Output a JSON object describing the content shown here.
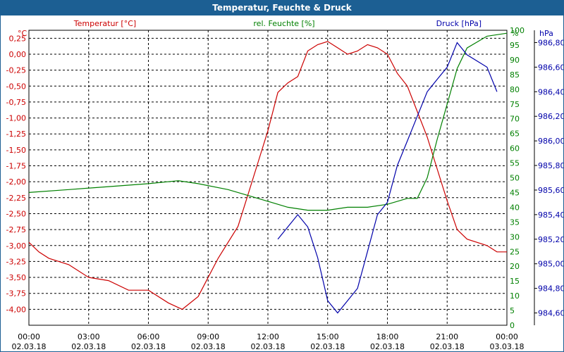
{
  "window": {
    "title": "Temperatur, Feuchte & Druck"
  },
  "colors": {
    "temperature": "#cc0000",
    "humidity": "#008000",
    "pressure": "#0000aa",
    "frame": "#1c5f93"
  },
  "chart_data": {
    "type": "line",
    "grid": true,
    "legend": "top",
    "axes": {
      "left": {
        "unit": "°C",
        "label": "Temperatur [°C]",
        "range": [
          -4.25,
          0.375
        ],
        "ticks": [
          "0,25",
          "0,00",
          "-0,25",
          "-0,50",
          "-0,75",
          "-1,00",
          "-1,25",
          "-1,50",
          "-1,75",
          "-2,00",
          "-2,25",
          "-2,50",
          "-2,75",
          "-3,00",
          "-3,25",
          "-3,50",
          "-3,75",
          "-4,00"
        ]
      },
      "right1": {
        "unit": "%",
        "label": "rel. Feuchte [%]",
        "range": [
          0,
          100
        ],
        "ticks": [
          "0",
          "5",
          "10",
          "15",
          "20",
          "25",
          "30",
          "35",
          "40",
          "45",
          "50",
          "55",
          "60",
          "65",
          "70",
          "75",
          "80",
          "85",
          "90",
          "95",
          "100"
        ]
      },
      "right2": {
        "unit": "hPa",
        "label": "Druck [hPa]",
        "range": [
          984.5,
          986.9
        ],
        "ticks": [
          "984,60",
          "984,80",
          "985,00",
          "985,20",
          "985,40",
          "985,60",
          "985,80",
          "986,00",
          "986,20",
          "986,40",
          "986,60",
          "986,80"
        ]
      },
      "x": {
        "range_hours": [
          0,
          24
        ],
        "ticks": [
          {
            "time": "00:00",
            "date": "02.03.18"
          },
          {
            "time": "03:00",
            "date": "02.03.18"
          },
          {
            "time": "06:00",
            "date": "02.03.18"
          },
          {
            "time": "09:00",
            "date": "02.03.18"
          },
          {
            "time": "12:00",
            "date": "02.03.18"
          },
          {
            "time": "15:00",
            "date": "02.03.18"
          },
          {
            "time": "18:00",
            "date": "02.03.18"
          },
          {
            "time": "21:00",
            "date": "02.03.18"
          },
          {
            "time": "00:00",
            "date": "03.03.18"
          }
        ]
      }
    },
    "series": [
      {
        "name": "Temperatur [°C]",
        "axis": "left",
        "points": [
          [
            0,
            -2.95
          ],
          [
            0.5,
            -3.1
          ],
          [
            1,
            -3.2
          ],
          [
            2,
            -3.3
          ],
          [
            3,
            -3.5
          ],
          [
            4,
            -3.55
          ],
          [
            5,
            -3.7
          ],
          [
            6,
            -3.7
          ],
          [
            7,
            -3.9
          ],
          [
            7.7,
            -4.0
          ],
          [
            8.5,
            -3.8
          ],
          [
            9.5,
            -3.2
          ],
          [
            10.5,
            -2.7
          ],
          [
            11,
            -2.2
          ],
          [
            11.5,
            -1.7
          ],
          [
            12,
            -1.2
          ],
          [
            12.5,
            -0.6
          ],
          [
            13,
            -0.45
          ],
          [
            13.5,
            -0.35
          ],
          [
            14,
            0.05
          ],
          [
            14.5,
            0.15
          ],
          [
            15,
            0.2
          ],
          [
            15.5,
            0.1
          ],
          [
            16,
            0.0
          ],
          [
            16.5,
            0.05
          ],
          [
            17,
            0.15
          ],
          [
            17.5,
            0.1
          ],
          [
            18,
            0.0
          ],
          [
            18.5,
            -0.3
          ],
          [
            19,
            -0.5
          ],
          [
            19.5,
            -0.9
          ],
          [
            20,
            -1.3
          ],
          [
            20.5,
            -1.8
          ],
          [
            21,
            -2.3
          ],
          [
            21.5,
            -2.75
          ],
          [
            22,
            -2.9
          ],
          [
            23,
            -3.0
          ],
          [
            23.5,
            -3.1
          ],
          [
            24,
            -3.1
          ]
        ]
      },
      {
        "name": "rel. Feuchte [%]",
        "axis": "right1",
        "points": [
          [
            0,
            45
          ],
          [
            2,
            46
          ],
          [
            4,
            47
          ],
          [
            6,
            48
          ],
          [
            7.5,
            49
          ],
          [
            8.5,
            48
          ],
          [
            10,
            46
          ],
          [
            11.5,
            43
          ],
          [
            13,
            40
          ],
          [
            14,
            39
          ],
          [
            15,
            39
          ],
          [
            16,
            40
          ],
          [
            17,
            40
          ],
          [
            18,
            41
          ],
          [
            19,
            43
          ],
          [
            19.5,
            43
          ],
          [
            20,
            50
          ],
          [
            20.5,
            63
          ],
          [
            21,
            75
          ],
          [
            21.5,
            87
          ],
          [
            22,
            94
          ],
          [
            23,
            98
          ],
          [
            24,
            99
          ]
        ]
      },
      {
        "name": "Druck [hPa]",
        "axis": "right2",
        "points": [
          [
            12.5,
            985.2
          ],
          [
            13,
            985.3
          ],
          [
            13.5,
            985.4
          ],
          [
            14,
            985.3
          ],
          [
            14.5,
            985.05
          ],
          [
            15,
            984.7
          ],
          [
            15.5,
            984.6
          ],
          [
            16,
            984.7
          ],
          [
            16.5,
            984.8
          ],
          [
            17,
            985.1
          ],
          [
            17.5,
            985.4
          ],
          [
            18,
            985.5
          ],
          [
            18.5,
            985.8
          ],
          [
            19,
            986.0
          ],
          [
            19.5,
            986.2
          ],
          [
            20,
            986.4
          ],
          [
            20.5,
            986.5
          ],
          [
            21,
            986.6
          ],
          [
            21.5,
            986.8
          ],
          [
            22,
            986.7
          ],
          [
            23,
            986.6
          ],
          [
            23.5,
            986.4
          ]
        ]
      }
    ]
  }
}
